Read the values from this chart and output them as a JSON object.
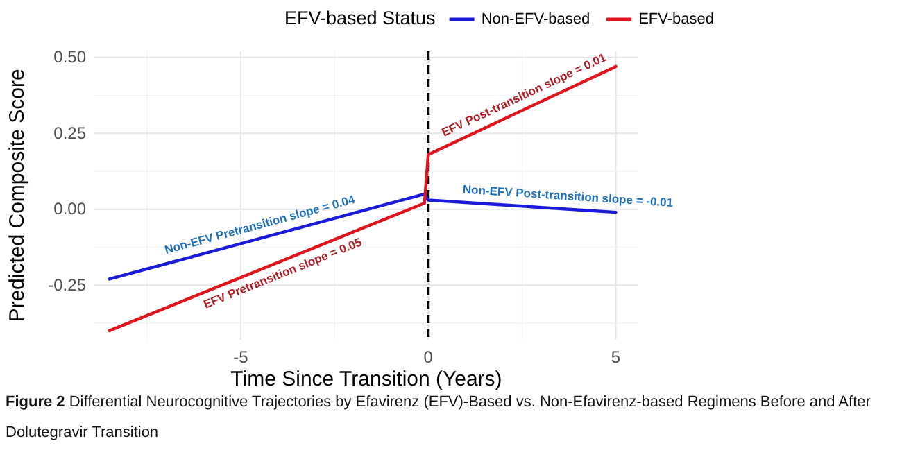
{
  "chart_data": {
    "type": "line",
    "xlabel": "Time Since Transition (Years)",
    "ylabel": "Predicted Composite Score",
    "legend_title": "EFV-based Status",
    "legend": "top",
    "x": [
      -8.5,
      -0.1,
      0,
      5
    ],
    "series": [
      {
        "name": "Non-EFV-based",
        "color": "#1a1adb",
        "values": [
          -0.23,
          0.05,
          0.03,
          -0.01
        ]
      },
      {
        "name": "EFV-based",
        "color": "#e0141c",
        "values": [
          -0.4,
          0.02,
          0.18,
          0.47
        ]
      }
    ],
    "xlim": [
      -8.9,
      5.6
    ],
    "xticks": [
      -5,
      0,
      5
    ],
    "ylim": [
      -0.43,
      0.52
    ],
    "yticks": [
      {
        "value": -0.25,
        "label": "-0.25"
      },
      {
        "value": 0,
        "label": "0.00"
      },
      {
        "value": 0.25,
        "label": "0.25"
      },
      {
        "value": 0.5,
        "label": "0.50"
      }
    ],
    "grid": true,
    "line_style": "solid",
    "marker": "none",
    "ref_lines": [
      {
        "axis": "x",
        "value": 0,
        "line_style": "dashed",
        "color": "#000000"
      }
    ],
    "annotations": [
      {
        "text": "Non-EFV Pretransition slope = 0.04",
        "x": -4.4,
        "y": -0.093
      },
      {
        "text": "EFV Pretransition slope = 0.05",
        "x": -4.0,
        "y": -0.175
      },
      {
        "text": "EFV Post-transition slope = 0.01",
        "x": 2.7,
        "y": 0.337
      },
      {
        "text": "Non-EFV Post-transition slope = -0.01",
        "x": 3.7,
        "y": 0.0
      },
      "Figure 2 Differential Neurocognitive Trajectories by Efavirenz (EFV)-Based vs. Non-Efavirenz-based Regimens Before and After Dolutegravir Transition"
    ]
  }
}
